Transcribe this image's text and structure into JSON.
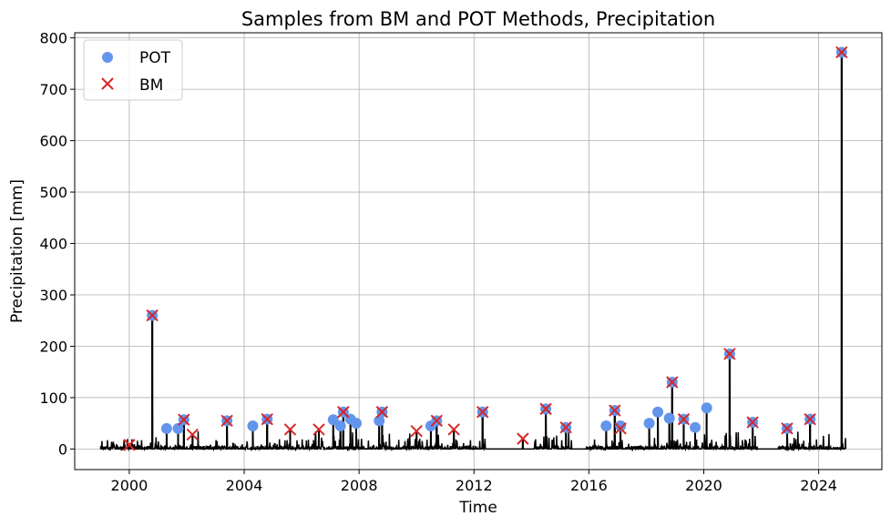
{
  "chart_data": {
    "type": "scatter",
    "title": "Samples from BM and POT Methods, Precipitation",
    "xlabel": "Time",
    "ylabel": "Precipitation [mm]",
    "xlim": [
      1998.1,
      2026.2
    ],
    "ylim": [
      -40,
      810
    ],
    "x_ticks": [
      "2000",
      "2004",
      "2008",
      "2012",
      "2016",
      "2020",
      "2024"
    ],
    "y_ticks": [
      0,
      100,
      200,
      300,
      400,
      500,
      600,
      700,
      800
    ],
    "grid": true,
    "legend_position": "top-left",
    "series": [
      {
        "name": "POT",
        "marker": "circle",
        "color": "#6495ED",
        "points": [
          [
            2000.8,
            260
          ],
          [
            2001.3,
            40
          ],
          [
            2001.7,
            40
          ],
          [
            2001.9,
            57
          ],
          [
            2003.4,
            55
          ],
          [
            2004.3,
            45
          ],
          [
            2004.8,
            58
          ],
          [
            2007.1,
            57
          ],
          [
            2007.35,
            45
          ],
          [
            2007.45,
            72
          ],
          [
            2007.7,
            58
          ],
          [
            2007.9,
            50
          ],
          [
            2008.7,
            55
          ],
          [
            2008.8,
            72
          ],
          [
            2010.5,
            45
          ],
          [
            2010.7,
            55
          ],
          [
            2012.3,
            72
          ],
          [
            2014.5,
            78
          ],
          [
            2015.2,
            42
          ],
          [
            2016.6,
            45
          ],
          [
            2016.9,
            75
          ],
          [
            2017.1,
            45
          ],
          [
            2018.1,
            50
          ],
          [
            2018.4,
            72
          ],
          [
            2018.8,
            60
          ],
          [
            2018.9,
            130
          ],
          [
            2019.3,
            58
          ],
          [
            2019.7,
            42
          ],
          [
            2020.1,
            80
          ],
          [
            2020.9,
            185
          ],
          [
            2021.7,
            52
          ],
          [
            2022.9,
            40
          ],
          [
            2023.7,
            58
          ],
          [
            2024.8,
            772
          ]
        ]
      },
      {
        "name": "BM",
        "marker": "x",
        "color": "#d62728",
        "points": [
          [
            2000.0,
            8
          ],
          [
            2000.8,
            260
          ],
          [
            2001.9,
            57
          ],
          [
            2002.2,
            28
          ],
          [
            2003.4,
            55
          ],
          [
            2004.8,
            58
          ],
          [
            2005.6,
            38
          ],
          [
            2006.6,
            38
          ],
          [
            2007.45,
            72
          ],
          [
            2008.8,
            72
          ],
          [
            2010.0,
            35
          ],
          [
            2010.7,
            55
          ],
          [
            2011.3,
            38
          ],
          [
            2012.3,
            72
          ],
          [
            2013.7,
            20
          ],
          [
            2014.5,
            78
          ],
          [
            2015.2,
            42
          ],
          [
            2016.9,
            75
          ],
          [
            2017.1,
            40
          ],
          [
            2018.9,
            130
          ],
          [
            2019.3,
            58
          ],
          [
            2020.9,
            185
          ],
          [
            2021.7,
            52
          ],
          [
            2022.9,
            40
          ],
          [
            2023.7,
            58
          ],
          [
            2024.8,
            772
          ]
        ]
      }
    ]
  }
}
